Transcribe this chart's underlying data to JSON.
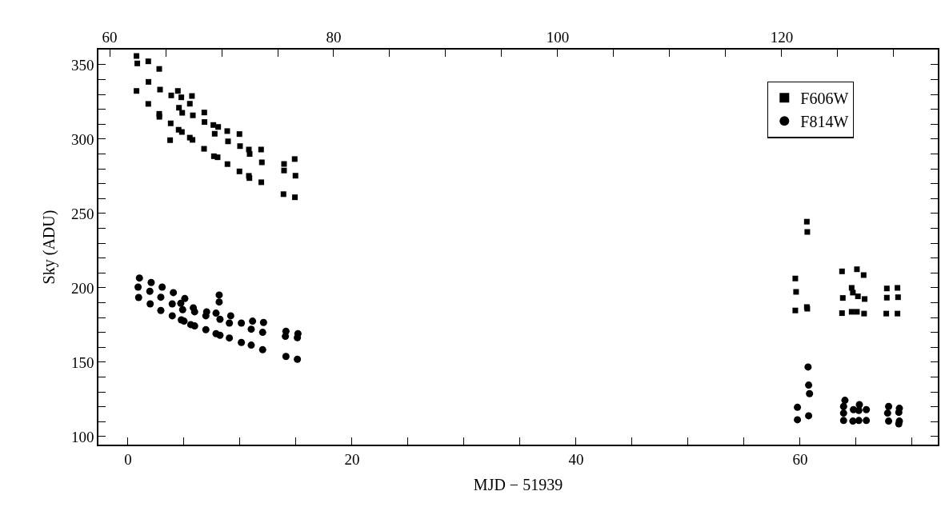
{
  "chart_data": {
    "type": "scatter",
    "xlabel": "MJD − 51939",
    "ylabel": "Sky (ADU)",
    "xlim": [
      -2.64,
      72.29
    ],
    "ylim": [
      94.6,
      360.2
    ],
    "x2lim": [
      59.0,
      133.93
    ],
    "xticks": [
      0,
      {
        "value": 5,
        "label": null
      },
      {
        "value": 10,
        "label": null
      },
      {
        "value": 15,
        "label": null
      },
      20,
      {
        "value": 25,
        "label": null
      },
      {
        "value": 30,
        "label": null
      },
      {
        "value": 35,
        "label": null
      },
      40,
      {
        "value": 45,
        "label": null
      },
      {
        "value": 50,
        "label": null
      },
      {
        "value": 55,
        "label": null
      },
      60,
      {
        "value": 65,
        "label": null
      },
      {
        "value": 70,
        "label": null
      }
    ],
    "x2ticks": [
      60,
      {
        "value": 65,
        "label": null
      },
      {
        "value": 70,
        "label": null
      },
      {
        "value": 75,
        "label": null
      },
      80,
      {
        "value": 85,
        "label": null
      },
      {
        "value": 90,
        "label": null
      },
      {
        "value": 95,
        "label": null
      },
      100,
      {
        "value": 105,
        "label": null
      },
      {
        "value": 110,
        "label": null
      },
      {
        "value": 115,
        "label": null
      },
      120,
      {
        "value": 125,
        "label": null
      },
      {
        "value": 130,
        "label": null
      }
    ],
    "yticks": [
      100,
      {
        "value": 110,
        "label": null
      },
      {
        "value": 120,
        "label": null
      },
      {
        "value": 130,
        "label": null
      },
      {
        "value": 140,
        "label": null
      },
      150,
      {
        "value": 160,
        "label": null
      },
      {
        "value": 170,
        "label": null
      },
      {
        "value": 180,
        "label": null
      },
      {
        "value": 190,
        "label": null
      },
      200,
      {
        "value": 210,
        "label": null
      },
      {
        "value": 220,
        "label": null
      },
      {
        "value": 230,
        "label": null
      },
      {
        "value": 240,
        "label": null
      },
      250,
      {
        "value": 260,
        "label": null
      },
      {
        "value": 270,
        "label": null
      },
      {
        "value": 280,
        "label": null
      },
      {
        "value": 290,
        "label": null
      },
      300,
      {
        "value": 310,
        "label": null
      },
      {
        "value": 320,
        "label": null
      },
      {
        "value": 330,
        "label": null
      },
      {
        "value": 340,
        "label": null
      },
      350
    ],
    "legend": "top right",
    "series": [
      {
        "name": "F606W",
        "color": "#000000",
        "marker": "square",
        "x": [
          0.76,
          0.83,
          0.76,
          1.81,
          1.83,
          1.81,
          2.79,
          2.86,
          2.79,
          2.8,
          3.86,
          3.81,
          3.76,
          4.45,
          4.55,
          4.76,
          4.84,
          4.52,
          4.81,
          5.71,
          5.52,
          5.79,
          5.52,
          5.76,
          6.81,
          6.83,
          6.79,
          7.62,
          8.05,
          7.74,
          7.67,
          8.0,
          8.86,
          8.93,
          8.88,
          9.95,
          10.0,
          9.95,
          10.79,
          10.86,
          10.79,
          10.84,
          11.88,
          11.95,
          11.9,
          13.93,
          13.93,
          13.88,
          14.88,
          14.95,
          14.9,
          59.57,
          59.64,
          59.57,
          60.6,
          60.64,
          60.6,
          60.64,
          63.74,
          63.81,
          63.74,
          65.07,
          64.6,
          64.71,
          65.16,
          65.67,
          65.76,
          64.6,
          65.07,
          65.71,
          67.74,
          67.74,
          67.69,
          68.69,
          68.74,
          68.69
        ],
        "values": [
          355.9,
          350.9,
          332.4,
          352.3,
          338.5,
          323.7,
          347.2,
          333.3,
          317.0,
          315.0,
          329.4,
          310.6,
          299.3,
          332.4,
          321.1,
          328.1,
          317.7,
          306.3,
          304.8,
          329.0,
          323.8,
          316.0,
          301.0,
          299.5,
          317.9,
          311.5,
          293.5,
          309.5,
          308.2,
          303.6,
          288.5,
          287.8,
          305.4,
          298.5,
          283.2,
          303.4,
          295.3,
          278.3,
          293.0,
          290.0,
          275.3,
          273.8,
          293.0,
          284.4,
          271.0,
          283.3,
          278.9,
          263.0,
          286.6,
          275.4,
          260.9,
          206.3,
          197.3,
          184.8,
          244.5,
          237.6,
          187.1,
          186.0,
          211.1,
          193.2,
          183.0,
          212.5,
          200.0,
          196.8,
          194.3,
          208.6,
          192.5,
          183.9,
          183.9,
          182.7,
          199.6,
          193.4,
          182.7,
          200.0,
          193.7,
          182.7
        ]
      },
      {
        "name": "F814W",
        "color": "#000000",
        "marker": "circle",
        "x": [
          1.02,
          0.9,
          0.95,
          2.07,
          1.95,
          1.98,
          3.05,
          2.93,
          2.93,
          4.05,
          3.95,
          3.95,
          5.07,
          4.71,
          4.88,
          4.76,
          5.0,
          5.83,
          5.95,
          5.6,
          5.95,
          7.02,
          6.95,
          6.95,
          8.14,
          8.14,
          7.86,
          8.21,
          7.86,
          8.21,
          9.17,
          9.05,
          9.05,
          10.12,
          10.12,
          11.12,
          11.0,
          11.0,
          12.1,
          12.02,
          12.02,
          14.1,
          14.05,
          14.1,
          15.17,
          15.12,
          15.12,
          60.71,
          60.76,
          60.84,
          59.76,
          59.76,
          60.76,
          64.0,
          63.88,
          63.88,
          63.88,
          65.29,
          64.76,
          65.24,
          65.91,
          64.71,
          65.24,
          65.91,
          67.9,
          67.81,
          67.9,
          68.86,
          68.81,
          68.86,
          68.81
        ],
        "values": [
          206.6,
          200.5,
          193.5,
          203.6,
          197.7,
          189.2,
          200.5,
          193.7,
          184.8,
          196.8,
          189.2,
          181.2,
          192.8,
          189.6,
          185.3,
          178.5,
          177.6,
          186.6,
          183.9,
          175.3,
          174.4,
          183.9,
          181.2,
          171.9,
          195.2,
          190.5,
          183.0,
          178.9,
          169.2,
          168.1,
          181.2,
          176.3,
          166.3,
          176.3,
          163.3,
          177.6,
          172.2,
          161.5,
          176.7,
          170.1,
          158.4,
          170.8,
          167.4,
          153.9,
          169.2,
          166.5,
          152.0,
          146.8,
          134.6,
          128.9,
          119.7,
          111.3,
          114.0,
          124.4,
          120.3,
          115.8,
          110.8,
          121.5,
          118.1,
          117.6,
          118.1,
          110.4,
          110.8,
          110.8,
          120.3,
          115.8,
          110.4,
          119.0,
          116.3,
          110.4,
          108.6
        ]
      }
    ]
  }
}
